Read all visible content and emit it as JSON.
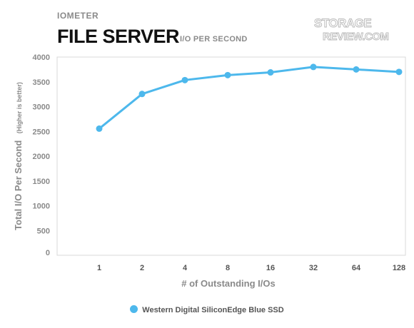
{
  "header": {
    "category": "IOMETER",
    "title": "FILE SERVER",
    "subtitle": "I/O PER SECOND",
    "logo_top": "STORAGE",
    "logo_bottom": "REVIEW.COM"
  },
  "colors": {
    "series": "#4db8ec",
    "axis_text": "#8a8a8a",
    "grid": "#d9d9d9"
  },
  "chart_data": {
    "type": "line",
    "categories": [
      "1",
      "2",
      "4",
      "8",
      "16",
      "32",
      "64",
      "128"
    ],
    "series": [
      {
        "name": "Western Digital SiliconEdge Blue SSD",
        "values": [
          2555,
          3255,
          3535,
          3635,
          3690,
          3800,
          3750,
          3700
        ]
      }
    ],
    "xlabel": "# of Outstanding I/Os",
    "ylabel": "Total I/O Per Second",
    "ylabel_note": "(Higher is better)",
    "ylim": [
      0,
      4000
    ],
    "yticks": [
      0,
      500,
      1000,
      1500,
      2000,
      2500,
      3000,
      3500,
      4000
    ],
    "grid": false,
    "legend_position": "bottom"
  }
}
